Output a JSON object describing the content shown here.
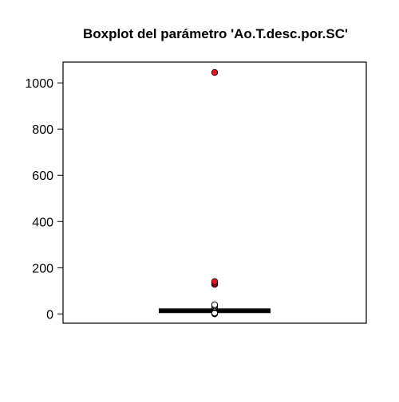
{
  "chart_data": {
    "type": "boxplot",
    "title": "Boxplot del parámetro 'Ao.T.desc.por.SC'",
    "xlabel": "",
    "ylabel": "",
    "ylim": [
      -40,
      1090
    ],
    "y_ticks": [
      0,
      200,
      400,
      600,
      800,
      1000
    ],
    "y_tick_labels": [
      "0",
      "200",
      "400",
      "600",
      "800",
      "1000"
    ],
    "grid": false,
    "box": {
      "min": 6,
      "q1": 12,
      "median": 14,
      "q3": 16,
      "max": 22
    },
    "outliers_regular": [
      0,
      2,
      4,
      26,
      30,
      35,
      40
    ],
    "outliers_extreme": [
      128,
      134,
      140,
      1045
    ],
    "colors": {
      "extreme_fill": "#e8131f",
      "regular_fill": "#ffffff",
      "stroke": "#000000",
      "frame": "#000000"
    }
  }
}
